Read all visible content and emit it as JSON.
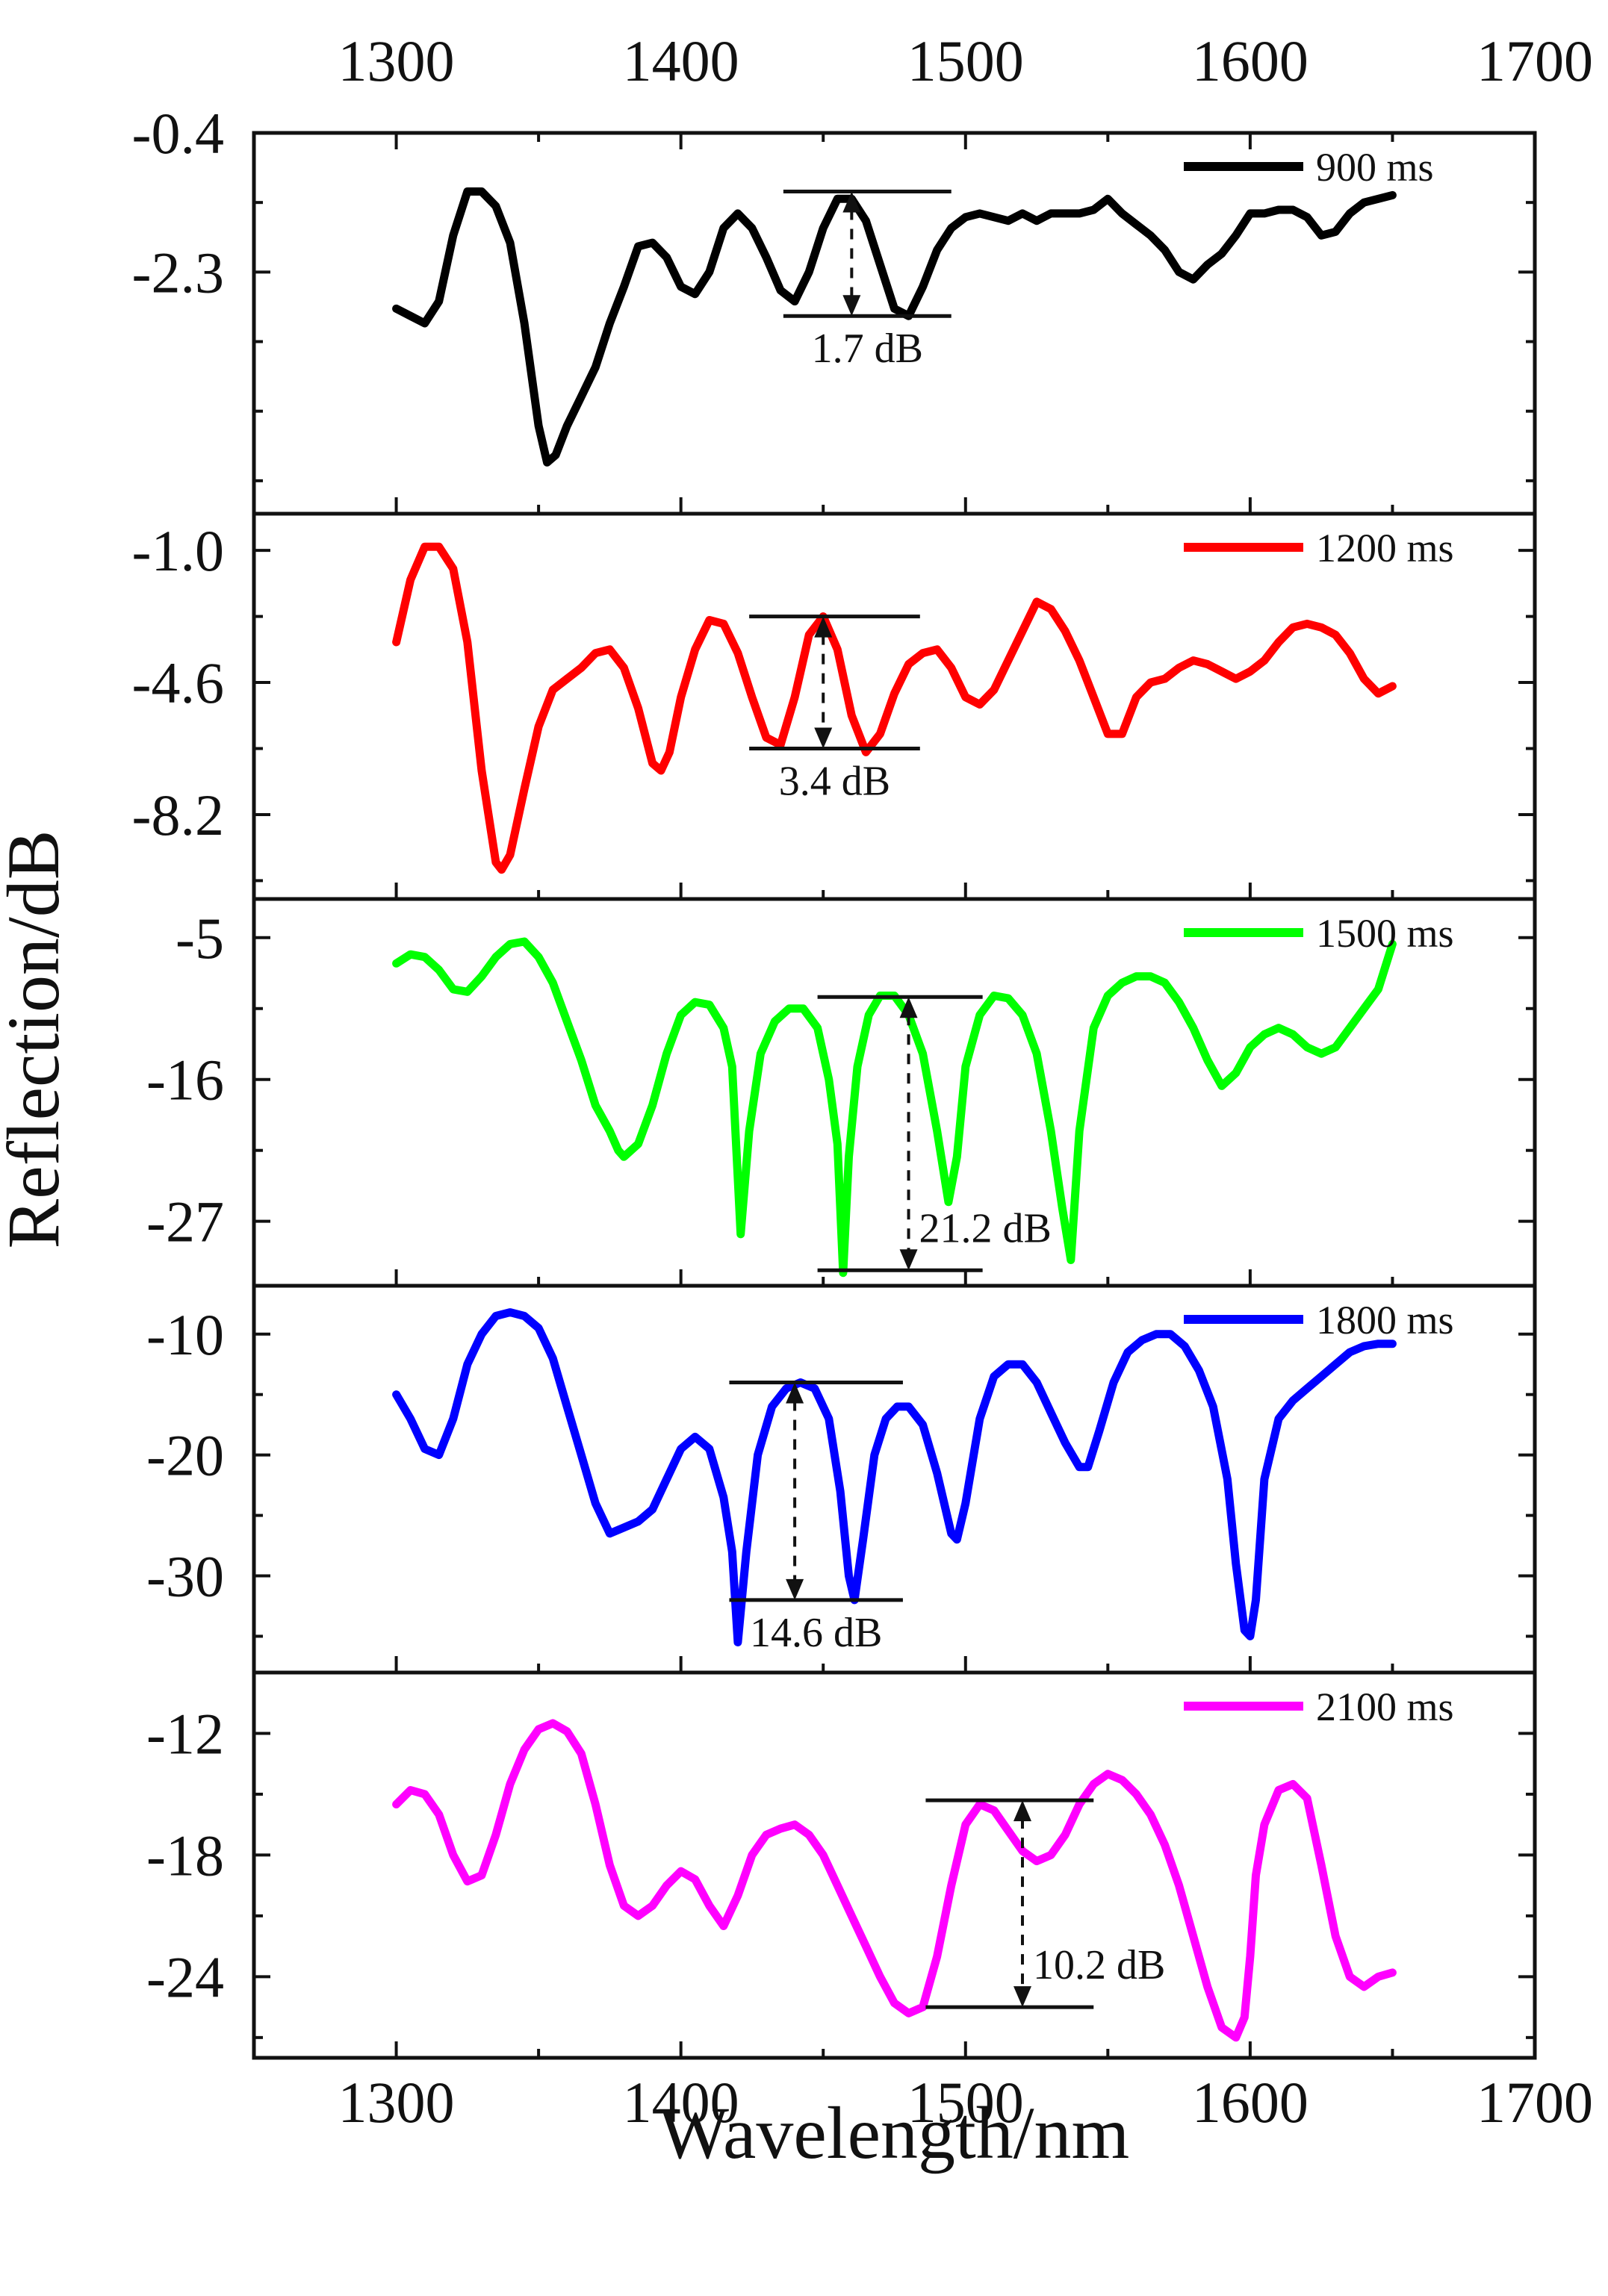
{
  "chart_data": {
    "type": "line",
    "title": "",
    "xlabel": "Wavelength/nm",
    "ylabel": "Reflection/dB",
    "xlim": [
      1250,
      1700
    ],
    "xticks": [
      "1300",
      "1400",
      "1500",
      "1600",
      "1700"
    ],
    "grid": false,
    "panels": [
      {
        "legend": "900 ms",
        "color": "#000000",
        "ylim": [
          -5.6,
          -0.4
        ],
        "yticks": [
          "-0.4",
          "-2.3"
        ],
        "x": [
          1300,
          1305,
          1310,
          1315,
          1320,
          1325,
          1330,
          1335,
          1340,
          1345,
          1350,
          1353,
          1356,
          1360,
          1365,
          1370,
          1375,
          1380,
          1385,
          1390,
          1395,
          1400,
          1405,
          1410,
          1415,
          1420,
          1425,
          1430,
          1435,
          1440,
          1445,
          1450,
          1455,
          1460,
          1465,
          1470,
          1475,
          1480,
          1485,
          1490,
          1495,
          1500,
          1505,
          1510,
          1515,
          1520,
          1525,
          1530,
          1535,
          1540,
          1545,
          1550,
          1555,
          1560,
          1565,
          1570,
          1575,
          1580,
          1585,
          1590,
          1595,
          1600,
          1605,
          1610,
          1615,
          1620,
          1625,
          1630,
          1635,
          1640,
          1645,
          1650
        ],
        "y": [
          -2.8,
          -2.9,
          -3.0,
          -2.7,
          -1.8,
          -1.2,
          -1.2,
          -1.4,
          -1.9,
          -3.0,
          -4.4,
          -4.9,
          -4.8,
          -4.4,
          -4.0,
          -3.6,
          -3.0,
          -2.5,
          -1.95,
          -1.9,
          -2.1,
          -2.5,
          -2.6,
          -2.3,
          -1.7,
          -1.5,
          -1.7,
          -2.1,
          -2.55,
          -2.7,
          -2.3,
          -1.7,
          -1.3,
          -1.3,
          -1.6,
          -2.2,
          -2.8,
          -2.9,
          -2.5,
          -2.0,
          -1.7,
          -1.55,
          -1.5,
          -1.55,
          -1.6,
          -1.5,
          -1.6,
          -1.5,
          -1.5,
          -1.5,
          -1.45,
          -1.3,
          -1.5,
          -1.65,
          -1.8,
          -2.0,
          -2.3,
          -2.4,
          -2.2,
          -2.05,
          -1.8,
          -1.5,
          -1.5,
          -1.45,
          -1.45,
          -1.55,
          -1.8,
          -1.75,
          -1.5,
          -1.35,
          -1.3,
          -1.25
        ],
        "annotation": {
          "label": "1.7 dB",
          "x": 1460,
          "x_from": 1436,
          "x_to": 1495,
          "y_top": -1.2,
          "y_bottom": -2.9
        }
      },
      {
        "legend": "1200 ms",
        "color": "#ff0000",
        "ylim": [
          -10.5,
          0
        ],
        "yticks": [
          "-1.0",
          "-4.6",
          "-8.2"
        ],
        "x": [
          1300,
          1305,
          1310,
          1315,
          1320,
          1325,
          1330,
          1335,
          1337,
          1340,
          1345,
          1350,
          1355,
          1360,
          1365,
          1370,
          1375,
          1380,
          1385,
          1390,
          1393,
          1396,
          1400,
          1405,
          1410,
          1415,
          1420,
          1425,
          1430,
          1435,
          1440,
          1445,
          1450,
          1455,
          1460,
          1465,
          1470,
          1475,
          1480,
          1485,
          1490,
          1495,
          1500,
          1505,
          1510,
          1515,
          1520,
          1525,
          1530,
          1535,
          1540,
          1545,
          1550,
          1555,
          1560,
          1565,
          1570,
          1575,
          1580,
          1585,
          1590,
          1595,
          1600,
          1605,
          1610,
          1615,
          1620,
          1625,
          1630,
          1635,
          1640,
          1645,
          1650
        ],
        "y": [
          -3.5,
          -1.8,
          -0.9,
          -0.9,
          -1.5,
          -3.5,
          -7.0,
          -9.5,
          -9.7,
          -9.3,
          -7.5,
          -5.8,
          -4.8,
          -4.5,
          -4.2,
          -3.8,
          -3.7,
          -4.2,
          -5.3,
          -6.8,
          -7.0,
          -6.5,
          -5.0,
          -3.7,
          -2.9,
          -3.0,
          -3.8,
          -5.0,
          -6.1,
          -6.3,
          -5.0,
          -3.3,
          -2.8,
          -3.7,
          -5.5,
          -6.5,
          -6.0,
          -4.9,
          -4.1,
          -3.8,
          -3.7,
          -4.2,
          -5.0,
          -5.2,
          -4.8,
          -4.0,
          -3.2,
          -2.4,
          -2.6,
          -3.2,
          -4.0,
          -5.0,
          -6.0,
          -6.0,
          -5.0,
          -4.6,
          -4.5,
          -4.2,
          -4.0,
          -4.1,
          -4.3,
          -4.5,
          -4.3,
          -4.0,
          -3.5,
          -3.1,
          -3.0,
          -3.1,
          -3.3,
          -3.8,
          -4.5,
          -4.9,
          -4.7
        ],
        "annotation": {
          "label": "3.4 dB",
          "x": 1450,
          "x_from": 1424,
          "x_to": 1484,
          "y_top": -2.8,
          "y_bottom": -6.4
        }
      },
      {
        "legend": "1500 ms",
        "color": "#00ff00",
        "ylim": [
          -32,
          -2
        ],
        "yticks": [
          "-5",
          "-16",
          "-27"
        ],
        "x": [
          1300,
          1305,
          1310,
          1315,
          1320,
          1325,
          1330,
          1335,
          1340,
          1345,
          1350,
          1355,
          1360,
          1365,
          1370,
          1375,
          1378,
          1380,
          1385,
          1390,
          1395,
          1400,
          1405,
          1410,
          1415,
          1418,
          1421,
          1424,
          1428,
          1433,
          1438,
          1443,
          1448,
          1452,
          1455,
          1457,
          1459,
          1462,
          1466,
          1470,
          1475,
          1480,
          1485,
          1490,
          1494,
          1497,
          1500,
          1505,
          1510,
          1515,
          1520,
          1525,
          1530,
          1534,
          1537,
          1540,
          1545,
          1550,
          1555,
          1560,
          1565,
          1570,
          1575,
          1580,
          1585,
          1590,
          1595,
          1600,
          1605,
          1610,
          1615,
          1620,
          1625,
          1630,
          1635,
          1640,
          1645,
          1650
        ],
        "y": [
          -7.0,
          -6.3,
          -6.5,
          -7.5,
          -9.0,
          -9.2,
          -8.0,
          -6.5,
          -5.5,
          -5.3,
          -6.5,
          -8.5,
          -11.5,
          -14.5,
          -18.0,
          -20.0,
          -21.5,
          -22.0,
          -21.0,
          -18.0,
          -14.0,
          -11.0,
          -10.0,
          -10.2,
          -12.0,
          -15.0,
          -28.0,
          -20.0,
          -14.0,
          -11.5,
          -10.5,
          -10.5,
          -12.0,
          -16.0,
          -21.0,
          -31.0,
          -22.0,
          -15.0,
          -11.0,
          -9.5,
          -9.5,
          -11.0,
          -14.0,
          -20.0,
          -25.5,
          -22.0,
          -15.0,
          -11.0,
          -9.5,
          -9.7,
          -11.0,
          -14.0,
          -20.0,
          -26.0,
          -30.0,
          -20.0,
          -12.0,
          -9.5,
          -8.5,
          -8.0,
          -8.0,
          -8.5,
          -10.0,
          -12.0,
          -14.5,
          -16.5,
          -15.5,
          -13.5,
          -12.5,
          -12.0,
          -12.5,
          -13.5,
          -14.0,
          -13.5,
          -12.0,
          -10.5,
          -9.0,
          -5.5
        ],
        "annotation": {
          "label": "21.2 dB",
          "x": 1480,
          "x_from": 1448,
          "x_to": 1506,
          "y_top": -9.6,
          "y_bottom": -30.8
        }
      },
      {
        "legend": "1800 ms",
        "color": "#0000ff",
        "ylim": [
          -38,
          -6
        ],
        "yticks": [
          "-10",
          "-20",
          "-30"
        ],
        "x": [
          1300,
          1305,
          1310,
          1315,
          1320,
          1325,
          1330,
          1335,
          1340,
          1345,
          1350,
          1355,
          1360,
          1365,
          1370,
          1375,
          1380,
          1385,
          1390,
          1395,
          1400,
          1405,
          1410,
          1415,
          1418,
          1420,
          1423,
          1427,
          1432,
          1437,
          1442,
          1447,
          1452,
          1456,
          1459,
          1461,
          1464,
          1468,
          1472,
          1476,
          1480,
          1485,
          1490,
          1495,
          1497,
          1500,
          1505,
          1510,
          1515,
          1520,
          1525,
          1530,
          1535,
          1540,
          1543,
          1547,
          1552,
          1557,
          1562,
          1567,
          1572,
          1577,
          1582,
          1587,
          1592,
          1595,
          1598,
          1600,
          1602,
          1605,
          1610,
          1615,
          1620,
          1625,
          1630,
          1635,
          1640,
          1645,
          1650
        ],
        "y": [
          -15.0,
          -17.0,
          -19.5,
          -20.0,
          -17.0,
          -12.5,
          -10.0,
          -8.5,
          -8.2,
          -8.5,
          -9.5,
          -12.0,
          -16.0,
          -20.0,
          -24.0,
          -26.5,
          -26.0,
          -25.5,
          -24.5,
          -22.0,
          -19.5,
          -18.5,
          -19.5,
          -23.5,
          -28.0,
          -35.5,
          -28.0,
          -20.0,
          -16.0,
          -14.5,
          -14.0,
          -14.5,
          -17.0,
          -23.0,
          -30.0,
          -32.0,
          -27.0,
          -20.0,
          -17.0,
          -16.0,
          -16.0,
          -17.5,
          -21.5,
          -26.5,
          -27.0,
          -24.0,
          -17.0,
          -13.5,
          -12.5,
          -12.5,
          -14.0,
          -16.5,
          -19.0,
          -21.0,
          -21.0,
          -18.0,
          -14.0,
          -11.5,
          -10.5,
          -10.0,
          -10.0,
          -11.0,
          -13.0,
          -16.0,
          -22.0,
          -29.0,
          -34.5,
          -35.0,
          -32.0,
          -22.0,
          -17.0,
          -15.5,
          -14.5,
          -13.5,
          -12.5,
          -11.5,
          -11.0,
          -10.8,
          -10.8
        ],
        "annotation": {
          "label": "14.6 dB",
          "x": 1440,
          "x_from": 1417,
          "x_to": 1478,
          "y_top": -14.0,
          "y_bottom": -32.0
        }
      },
      {
        "legend": "2100 ms",
        "color": "#ff00ff",
        "ylim": [
          -28,
          -9
        ],
        "yticks": [
          "-12",
          "-18",
          "-24"
        ],
        "x": [
          1300,
          1305,
          1310,
          1315,
          1320,
          1325,
          1330,
          1335,
          1340,
          1345,
          1350,
          1355,
          1360,
          1365,
          1370,
          1375,
          1380,
          1385,
          1390,
          1395,
          1400,
          1405,
          1410,
          1415,
          1420,
          1425,
          1430,
          1435,
          1440,
          1445,
          1450,
          1455,
          1460,
          1465,
          1470,
          1475,
          1480,
          1485,
          1490,
          1495,
          1500,
          1505,
          1510,
          1515,
          1520,
          1525,
          1530,
          1535,
          1540,
          1545,
          1550,
          1555,
          1560,
          1565,
          1570,
          1575,
          1580,
          1585,
          1590,
          1595,
          1598,
          1600,
          1602,
          1605,
          1610,
          1615,
          1620,
          1625,
          1630,
          1635,
          1640,
          1645,
          1650
        ],
        "y": [
          -15.5,
          -14.8,
          -15.0,
          -16.0,
          -18.0,
          -19.3,
          -19.0,
          -17.0,
          -14.5,
          -12.8,
          -11.8,
          -11.5,
          -11.9,
          -13.0,
          -15.5,
          -18.5,
          -20.5,
          -21.0,
          -20.5,
          -19.5,
          -18.8,
          -19.2,
          -20.5,
          -21.5,
          -20.0,
          -18.0,
          -17.0,
          -16.7,
          -16.5,
          -17.0,
          -18.0,
          -19.5,
          -21.0,
          -22.5,
          -24.0,
          -25.3,
          -25.8,
          -25.5,
          -23.0,
          -19.5,
          -16.5,
          -15.5,
          -15.8,
          -16.8,
          -17.8,
          -18.3,
          -18.0,
          -17.0,
          -15.5,
          -14.5,
          -14.0,
          -14.3,
          -15.0,
          -16.0,
          -17.5,
          -19.5,
          -22.0,
          -24.5,
          -26.5,
          -27.0,
          -26.0,
          -23.0,
          -19.0,
          -16.5,
          -14.8,
          -14.5,
          -15.2,
          -18.5,
          -22.0,
          -24.0,
          -24.5,
          -24.0,
          -23.8
        ],
        "annotation": {
          "label": "10.2 dB",
          "x": 1520,
          "x_from": 1486,
          "x_to": 1545,
          "y_top": -15.3,
          "y_bottom": -25.5
        }
      }
    ]
  }
}
